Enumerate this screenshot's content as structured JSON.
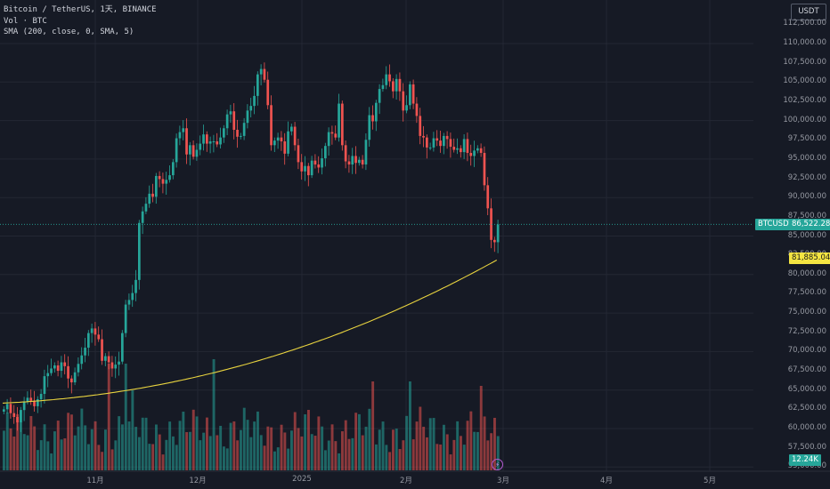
{
  "legend": {
    "symbol_line": "Bitcoin / TetherUS, 1天, BINANCE",
    "volume_line": "Vol · BTC",
    "sma_line": "SMA (200, close, 0, SMA, 5)"
  },
  "currency_badge": "USDT",
  "price_axis": {
    "labels": [
      "112,500.00",
      "110,000.00",
      "107,500.00",
      "105,000.00",
      "102,500.00",
      "100,000.00",
      "97,500.00",
      "95,000.00",
      "92,500.00",
      "90,000.00",
      "87,500.00",
      "85,000.00",
      "82,500.00",
      "80,000.00",
      "77,500.00",
      "75,000.00",
      "72,500.00",
      "70,000.00",
      "67,500.00",
      "65,000.00",
      "62,500.00",
      "60,000.00",
      "57,500.00",
      "55,000.00"
    ]
  },
  "time_axis": {
    "labels": [
      "11月",
      "12月",
      "2025",
      "2月",
      "3月",
      "4月",
      "5月"
    ]
  },
  "last_price_tag": {
    "symbol": "BTCUSDT",
    "value": "86,522.28"
  },
  "sma_tag": {
    "value": "81,885.04"
  },
  "volume_tag": {
    "value": "12.24K"
  },
  "colors": {
    "background": "#161a25",
    "up": "#26a69a",
    "down": "#ef5350",
    "sma": "#e8d33f",
    "grid": "#232733"
  },
  "chart_data": {
    "type": "candlestick",
    "title": "Bitcoin / TetherUS, 1天, BINANCE",
    "interval": "1天",
    "exchange": "BINANCE",
    "y_range": [
      55000,
      112500
    ],
    "grid": true,
    "last_price": 86522.28,
    "sma_200_last": 81885.04,
    "last_volume": "12.24K",
    "closes": [
      62500,
      63200,
      62000,
      61500,
      60800,
      62400,
      63500,
      64000,
      63600,
      62900,
      63800,
      64500,
      66800,
      67200,
      67800,
      68200,
      67500,
      68600,
      68100,
      66500,
      66000,
      67300,
      68400,
      69500,
      70500,
      72400,
      73000,
      72200,
      71600,
      68800,
      69400,
      68600,
      67800,
      68300,
      68700,
      72400,
      76100,
      76700,
      77600,
      79300,
      86700,
      88200,
      89200,
      90500,
      90100,
      92800,
      92400,
      91800,
      92300,
      92900,
      94600,
      97700,
      98500,
      99000,
      95600,
      96800,
      95300,
      96200,
      97000,
      98200,
      97000,
      97300,
      97300,
      96900,
      97800,
      99000,
      100800,
      101200,
      98800,
      97900,
      98000,
      99700,
      101300,
      101900,
      103200,
      106000,
      106700,
      105300,
      102000,
      96800,
      97400,
      97800,
      97300,
      95700,
      98600,
      99200,
      96800,
      94600,
      93400,
      94100,
      92900,
      94800,
      94300,
      93900,
      95100,
      96700,
      98500,
      98300,
      97800,
      102200,
      96800,
      94700,
      94300,
      95400,
      94500,
      94900,
      94300,
      97500,
      100700,
      99900,
      102300,
      104100,
      104600,
      106000,
      105100,
      103800,
      105400,
      103800,
      101300,
      102000,
      104700,
      102200,
      100600,
      98000,
      97800,
      96500,
      96500,
      97700,
      97400,
      96700,
      98000,
      97600,
      96600,
      96200,
      96400,
      95900,
      97600,
      95800,
      95400,
      96100,
      96400,
      95800,
      91600,
      88600,
      84500,
      84200,
      86500
    ]
  }
}
